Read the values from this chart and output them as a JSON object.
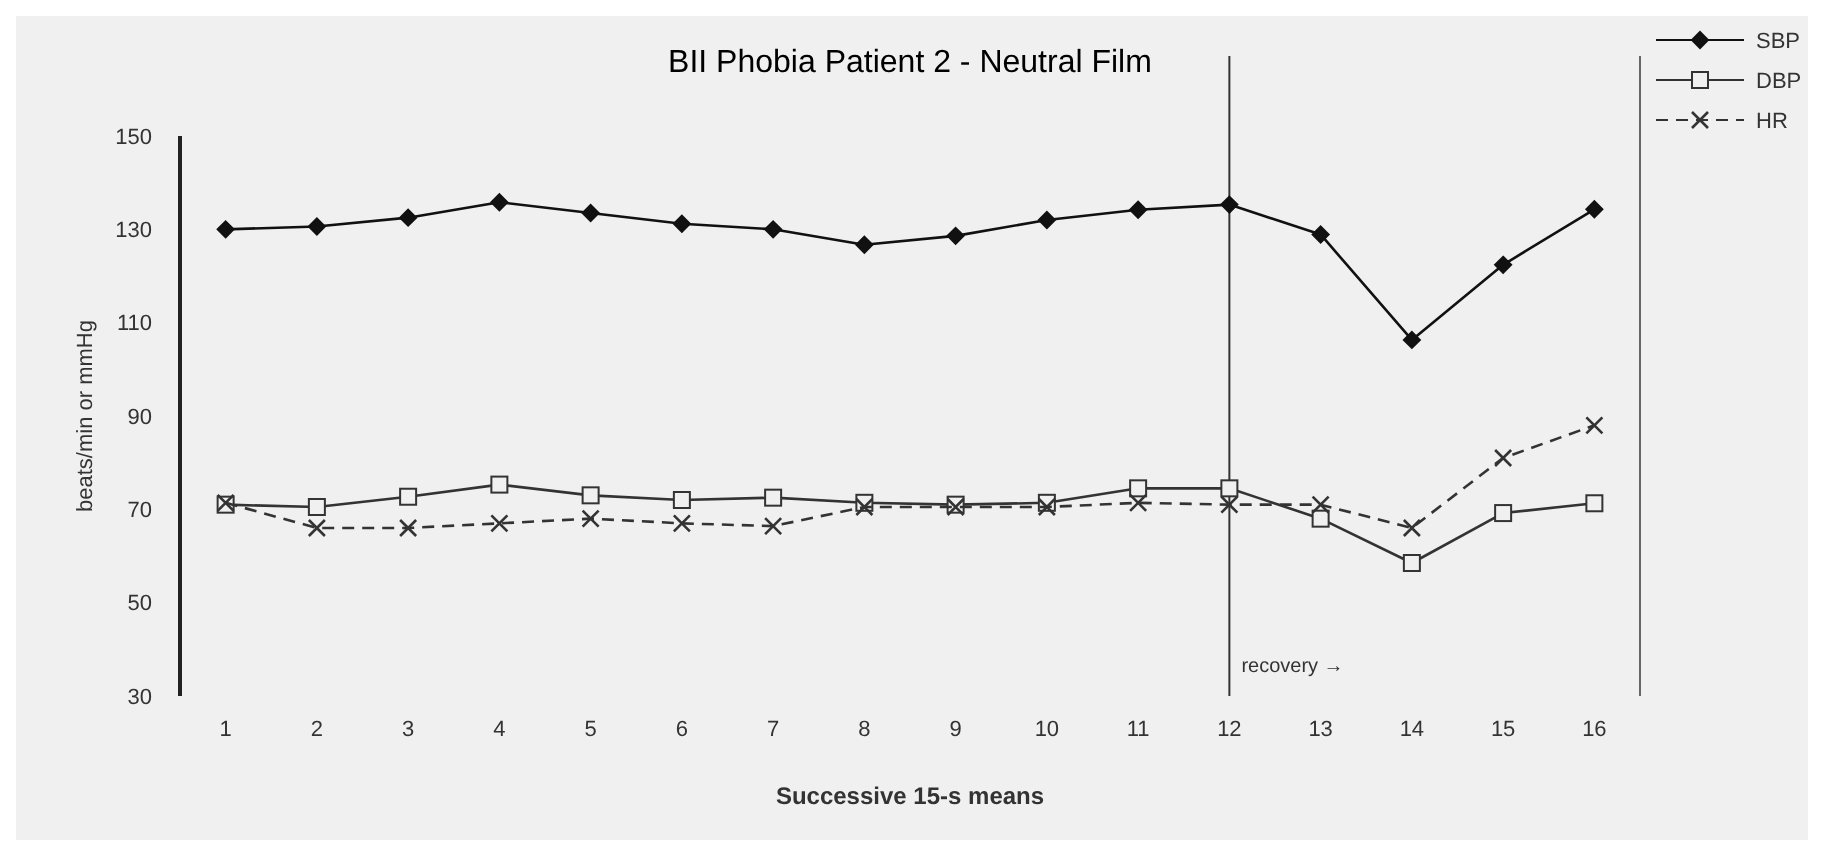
{
  "chart_data": {
    "type": "line",
    "title": "BII Phobia Patient 2 - Neutral Film",
    "xlabel": "Successive 15-s means",
    "ylabel": "beats/min or mmHg",
    "x": [
      1,
      2,
      3,
      4,
      5,
      6,
      7,
      8,
      9,
      10,
      11,
      12,
      13,
      14,
      15,
      16
    ],
    "xlim": [
      0.5,
      16.5
    ],
    "xticks": [
      1,
      2,
      3,
      4,
      5,
      6,
      7,
      8,
      9,
      10,
      11,
      12,
      13,
      14,
      15,
      16
    ],
    "ylim": [
      30,
      150
    ],
    "yticks": [
      30,
      50,
      70,
      90,
      110,
      130,
      150
    ],
    "series": [
      {
        "name": "SBP",
        "color": "#111111",
        "marker": "diamond",
        "line_style": "solid",
        "values": [
          130,
          130.6,
          132.5,
          135.8,
          133.5,
          131.2,
          130,
          126.7,
          128.6,
          132,
          134.2,
          135.3,
          128.9,
          106.3,
          122.4,
          134.3
        ]
      },
      {
        "name": "DBP",
        "color": "#333333",
        "marker": "square",
        "line_style": "solid",
        "values": [
          71,
          70.5,
          72.7,
          75.3,
          73,
          72,
          72.5,
          71.4,
          71,
          71.4,
          74.5,
          74.5,
          68,
          58.5,
          69.2,
          71.3
        ]
      },
      {
        "name": "HR",
        "color": "#333333",
        "marker": "cross",
        "line_style": "dashed",
        "values": [
          71.4,
          66,
          66,
          67,
          68,
          67,
          66.4,
          70.5,
          70.5,
          70.5,
          71.4,
          71,
          71,
          66,
          81,
          88
        ]
      }
    ],
    "ref_lines": [
      {
        "axis": "x",
        "value": 12,
        "label": "recovery →",
        "color": "#333333"
      }
    ],
    "grid": false,
    "legend": "top right"
  }
}
